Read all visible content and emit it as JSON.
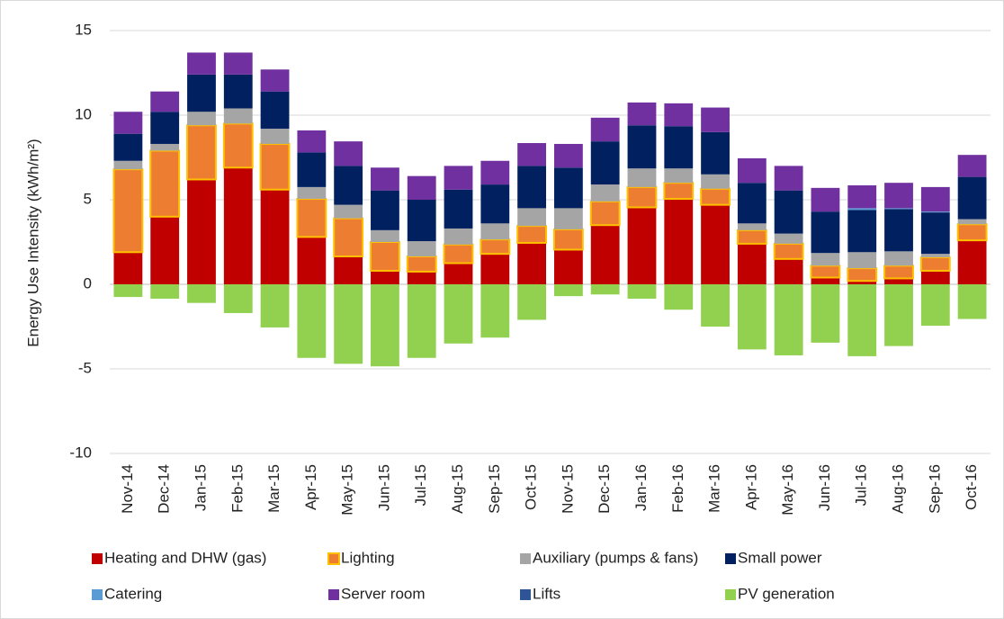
{
  "chart_data": {
    "type": "stacked_bar",
    "y_label": "Energy Use Intensity (kWh/m²)",
    "categories": [
      "Nov-14",
      "Dec-14",
      "Jan-15",
      "Feb-15",
      "Mar-15",
      "Apr-15",
      "May-15",
      "Jun-15",
      "Jul-15",
      "Aug-15",
      "Sep-15",
      "Oct-15",
      "Nov-15",
      "Dec-15",
      "Jan-16",
      "Feb-16",
      "Mar-16",
      "Apr-16",
      "May-16",
      "Jun-16",
      "Jul-16",
      "Aug-16",
      "Sep-16",
      "Oct-16"
    ],
    "ylim": [
      -10,
      15
    ],
    "yticks": [
      -10,
      -5,
      0,
      5,
      10,
      15
    ],
    "grid": true,
    "legend": "bottom",
    "series": [
      {
        "name": "Heating and DHW (gas)",
        "color": "#c00000",
        "values": [
          1.9,
          4.0,
          6.2,
          6.9,
          5.6,
          2.8,
          1.65,
          0.8,
          0.75,
          1.25,
          1.8,
          2.45,
          2.05,
          3.5,
          4.55,
          5.05,
          4.7,
          2.4,
          1.5,
          0.4,
          0.2,
          0.35,
          0.8,
          2.6
        ]
      },
      {
        "name": "Lighting",
        "color": "#ed7d31",
        "stroke": "#ffc000",
        "values": [
          4.9,
          3.9,
          3.2,
          2.6,
          2.7,
          2.25,
          2.25,
          1.7,
          0.9,
          1.1,
          0.85,
          1.0,
          1.2,
          1.4,
          1.2,
          0.95,
          0.95,
          0.8,
          0.9,
          0.7,
          0.75,
          0.75,
          0.8,
          0.95
        ]
      },
      {
        "name": "Auxiliary (pumps & fans)",
        "color": "#a5a5a5",
        "values": [
          0.5,
          0.4,
          0.8,
          0.9,
          0.9,
          0.7,
          0.8,
          0.7,
          0.9,
          0.95,
          0.95,
          1.05,
          1.25,
          1.0,
          1.1,
          0.85,
          0.85,
          0.4,
          0.6,
          0.75,
          0.95,
          0.85,
          0.2,
          0.3
        ]
      },
      {
        "name": "Small power",
        "color": "#002060",
        "values": [
          1.6,
          1.9,
          2.2,
          2.0,
          2.2,
          2.05,
          2.3,
          2.35,
          2.45,
          2.3,
          2.3,
          2.5,
          2.4,
          2.55,
          2.55,
          2.5,
          2.5,
          2.4,
          2.55,
          2.45,
          2.5,
          2.5,
          2.45,
          2.5
        ]
      },
      {
        "name": "Catering",
        "color": "#5b9bd5",
        "values": [
          0,
          0,
          0,
          0,
          0,
          0,
          0,
          0,
          0,
          0,
          0,
          0,
          0,
          0,
          0,
          0,
          0,
          0,
          0,
          0,
          0.1,
          0.05,
          0.05,
          0
        ]
      },
      {
        "name": "Server room",
        "color": "#7030a0",
        "values": [
          1.3,
          1.2,
          1.3,
          1.3,
          1.3,
          1.3,
          1.45,
          1.35,
          1.4,
          1.4,
          1.4,
          1.35,
          1.4,
          1.4,
          1.35,
          1.35,
          1.45,
          1.45,
          1.45,
          1.4,
          1.35,
          1.5,
          1.45,
          1.3
        ]
      },
      {
        "name": "Lifts",
        "color": "#2f5597",
        "values": [
          0,
          0,
          0,
          0,
          0,
          0,
          0,
          0,
          0,
          0,
          0,
          0,
          0,
          0,
          0,
          0,
          0,
          0,
          0,
          0,
          0,
          0,
          0,
          0
        ]
      },
      {
        "name": "PV generation",
        "color": "#92d050",
        "values": [
          -0.75,
          -0.85,
          -1.1,
          -1.7,
          -2.55,
          -4.35,
          -4.7,
          -4.85,
          -4.35,
          -3.5,
          -3.15,
          -2.1,
          -0.7,
          -0.6,
          -0.85,
          -1.5,
          -2.5,
          -3.85,
          -4.2,
          -3.45,
          -4.25,
          -3.65,
          -2.45,
          -2.05
        ]
      }
    ]
  }
}
